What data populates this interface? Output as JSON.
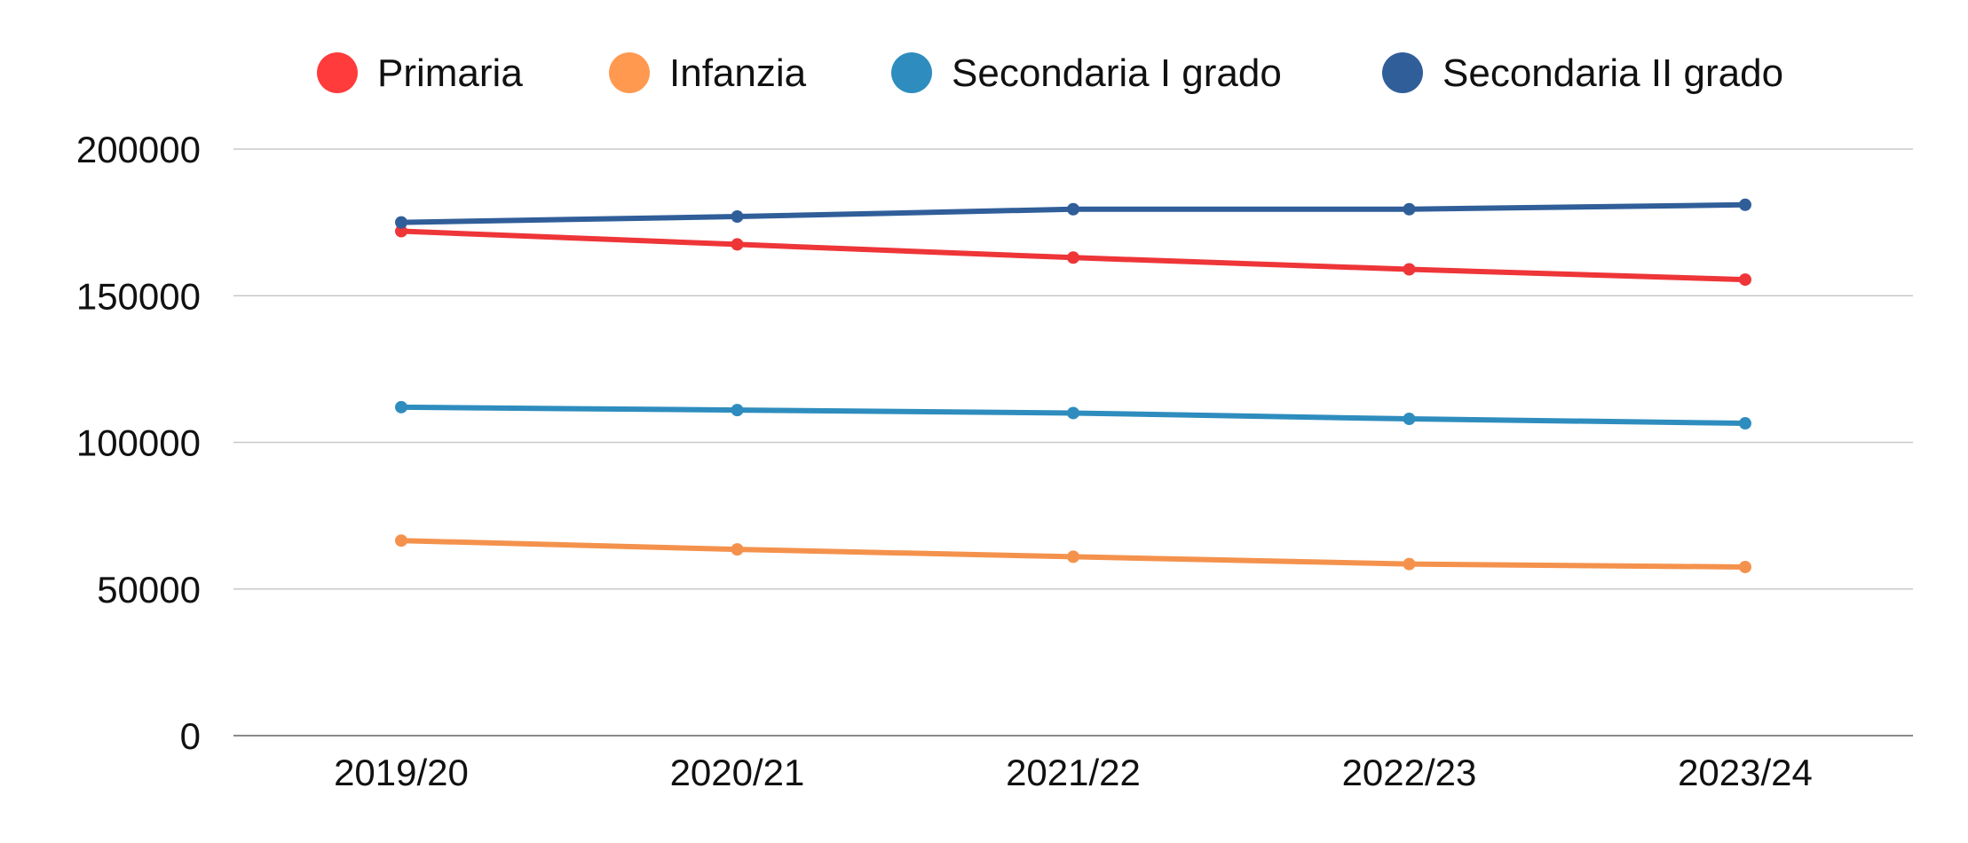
{
  "chart_data": {
    "type": "line",
    "title": "",
    "xlabel": "",
    "ylabel": "",
    "categories": [
      "2019/20",
      "2020/21",
      "2021/22",
      "2022/23",
      "2023/24"
    ],
    "ylim": [
      0,
      200000
    ],
    "yticks": [
      "0",
      "50000",
      "100000",
      "150000",
      "200000"
    ],
    "grid": true,
    "legend_position": "top",
    "series": [
      {
        "name": "Primaria",
        "color": "#ee3538",
        "legend_color": "#ff3b3b",
        "values": [
          172000,
          167500,
          163000,
          159000,
          155500
        ]
      },
      {
        "name": "Infanzia",
        "color": "#f4924d",
        "legend_color": "#ff9950",
        "values": [
          66500,
          63500,
          61000,
          58500,
          57500
        ]
      },
      {
        "name": "Secondaria I grado",
        "color": "#2e8dbe",
        "legend_color": "#2e8dbe",
        "values": [
          112000,
          111000,
          110000,
          108000,
          106500
        ]
      },
      {
        "name": "Secondaria II grado",
        "color": "#305e99",
        "legend_color": "#305e99",
        "values": [
          175000,
          177000,
          179500,
          179500,
          181000
        ]
      }
    ]
  }
}
